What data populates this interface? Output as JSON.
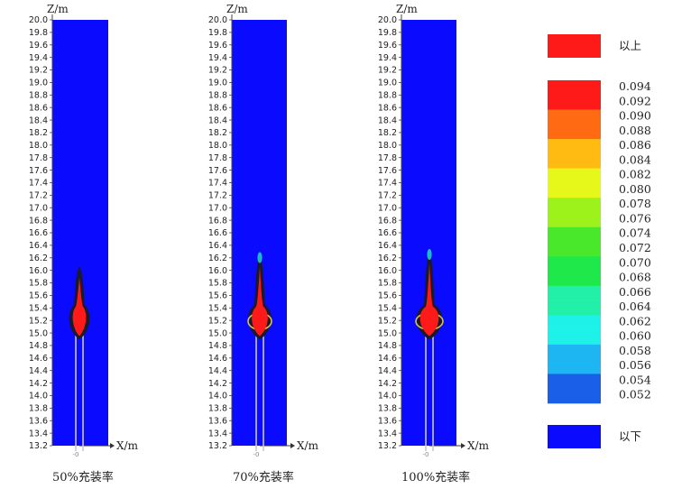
{
  "chart_data": {
    "type": "heatmap",
    "panels": [
      {
        "caption": "50%充装率"
      },
      {
        "caption": "70%充装率"
      },
      {
        "caption": "100%充装率"
      }
    ],
    "z_axis_label": "Z/m",
    "x_axis_label": "X/m",
    "z_ticks": [
      "20.0",
      "19.8",
      "19.6",
      "19.4",
      "19.2",
      "19.0",
      "18.8",
      "18.6",
      "18.4",
      "18.2",
      "18.0",
      "17.8",
      "17.6",
      "17.4",
      "17.2",
      "17.0",
      "16.8",
      "16.6",
      "16.4",
      "16.2",
      "16.0",
      "15.8",
      "15.6",
      "15.4",
      "15.2",
      "15.0",
      "14.8",
      "14.6",
      "14.4",
      "14.2",
      "14.0",
      "13.8",
      "13.6",
      "13.4",
      "13.2"
    ],
    "zlim": [
      13.2,
      20.0
    ],
    "x_origin_label": "-0",
    "legend": {
      "above_label": "以上",
      "below_label": "以下",
      "values": [
        "0.094",
        "0.092",
        "0.090",
        "0.088",
        "0.086",
        "0.084",
        "0.082",
        "0.080",
        "0.078",
        "0.076",
        "0.074",
        "0.072",
        "0.070",
        "0.068",
        "0.066",
        "0.064",
        "0.062",
        "0.060",
        "0.058",
        "0.056",
        "0.054",
        "0.052"
      ],
      "colors": [
        "#ff1a1a",
        "#ff1a1a",
        "#ff6a12",
        "#ff6a12",
        "#ffbb12",
        "#ffbb12",
        "#e6f71a",
        "#e6f71a",
        "#9ef21c",
        "#9ef21c",
        "#4ae82a",
        "#4ae82a",
        "#1ee84a",
        "#1ee84a",
        "#22f0a8",
        "#22f0a8",
        "#1ef2e8",
        "#1ef2e8",
        "#1eb6f2",
        "#1eb6f2",
        "#1a5fe8",
        "#1a5fe8"
      ],
      "above_color": "#ff1a1a",
      "below_color": "#0a0aff"
    }
  }
}
